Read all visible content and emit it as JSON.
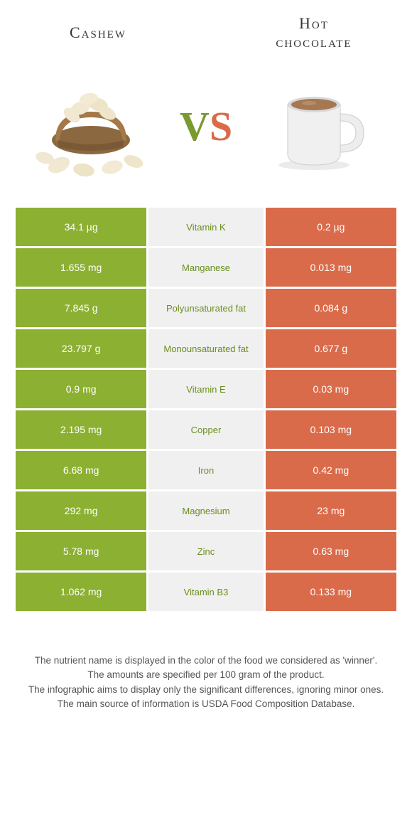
{
  "header": {
    "left_title": "Cashew",
    "right_title_l1": "Hot",
    "right_title_l2": "chocolate",
    "vs_v": "V",
    "vs_s": "S"
  },
  "colors": {
    "left_bg": "#8cb032",
    "right_bg": "#da6b4a",
    "mid_bg": "#f0f0f0",
    "green_text": "#6a8e1f",
    "red_text": "#c85a3a",
    "basket": "#a47848",
    "cashew": "#f0e8d0",
    "mug_body": "#e8e8e8",
    "cocoa": "#a67852"
  },
  "rows": [
    {
      "left": "34.1 µg",
      "nutrient": "Vitamin K",
      "right": "0.2 µg",
      "winner": "left"
    },
    {
      "left": "1.655 mg",
      "nutrient": "Manganese",
      "right": "0.013 mg",
      "winner": "left"
    },
    {
      "left": "7.845 g",
      "nutrient": "Polyunsaturated fat",
      "right": "0.084 g",
      "winner": "left"
    },
    {
      "left": "23.797 g",
      "nutrient": "Monounsaturated fat",
      "right": "0.677 g",
      "winner": "left"
    },
    {
      "left": "0.9 mg",
      "nutrient": "Vitamin E",
      "right": "0.03 mg",
      "winner": "left"
    },
    {
      "left": "2.195 mg",
      "nutrient": "Copper",
      "right": "0.103 mg",
      "winner": "left"
    },
    {
      "left": "6.68 mg",
      "nutrient": "Iron",
      "right": "0.42 mg",
      "winner": "left"
    },
    {
      "left": "292 mg",
      "nutrient": "Magnesium",
      "right": "23 mg",
      "winner": "left"
    },
    {
      "left": "5.78 mg",
      "nutrient": "Zinc",
      "right": "0.63 mg",
      "winner": "left"
    },
    {
      "left": "1.062 mg",
      "nutrient": "Vitamin B3",
      "right": "0.133 mg",
      "winner": "left"
    }
  ],
  "footer": {
    "line1": "The nutrient name is displayed in the color of the food we considered as 'winner'.",
    "line2": "The amounts are specified per 100 gram of the product.",
    "line3": "The infographic aims to display only the significant differences, ignoring minor ones.",
    "line4": "The main source of information is USDA Food Composition Database."
  }
}
